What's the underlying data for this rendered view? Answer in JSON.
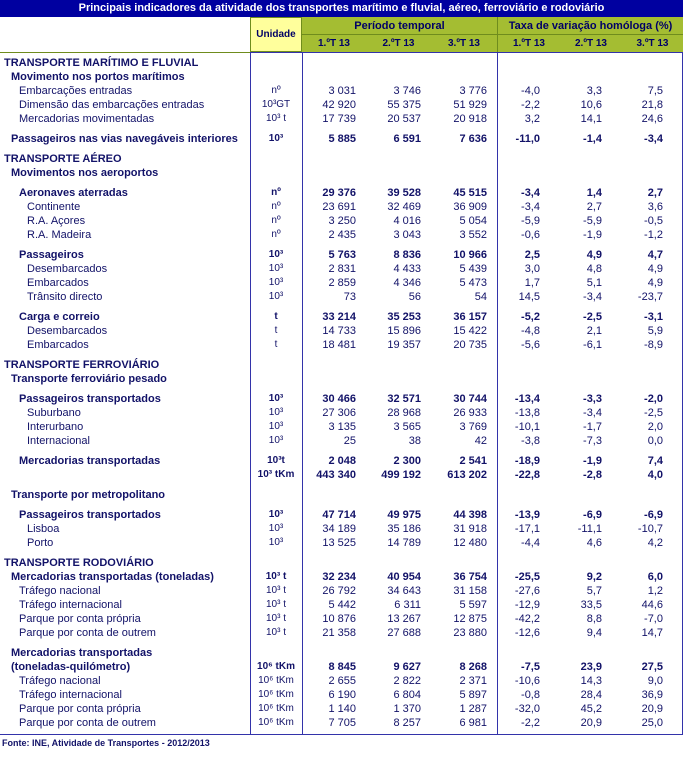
{
  "title": "Principais indicadores da atividade dos transportes marítimo e fluvial, aéreo, ferroviário e rodoviário",
  "header": {
    "unit_label": "Unidade",
    "period_group": "Período temporal",
    "rate_group": "Taxa de variação homóloga (%)",
    "period_cols": [
      "1.ºT 13",
      "2.ºT 13",
      "3.ºT 13"
    ],
    "rate_cols": [
      "1.ºT 13",
      "2.ºT 13",
      "3.ºT 13"
    ]
  },
  "colors": {
    "title_bar": "#0000a0",
    "header_green": "#a4bd32",
    "unit_yellow": "#ffff9c",
    "text_navy": "#121268",
    "line_blue": "#3333aa",
    "line_green": "#6f8c1d"
  },
  "rows": [
    {
      "label": "TRANSPORTE MARÍTIMO E FLUVIAL",
      "indent": 0,
      "bold": true
    },
    {
      "label": "Movimento nos portos marítimos",
      "indent": 1,
      "bold": true
    },
    {
      "label": "Embarcações entradas",
      "indent": 2,
      "bold": false,
      "unit": "nº",
      "v": [
        "3 031",
        "3 746",
        "3 776"
      ],
      "r": [
        "-4,0",
        "3,3",
        "7,5"
      ]
    },
    {
      "label": "Dimensão das embarcações entradas",
      "indent": 2,
      "bold": false,
      "unit": "10³GT",
      "v": [
        "42 920",
        "55 375",
        "51 929"
      ],
      "r": [
        "-2,2",
        "10,6",
        "21,8"
      ]
    },
    {
      "label": "Mercadorias movimentadas",
      "indent": 2,
      "bold": false,
      "unit": "10³ t",
      "v": [
        "17 739",
        "20 537",
        "20 918"
      ],
      "r": [
        "3,2",
        "14,1",
        "24,6"
      ]
    },
    {
      "label": "Passageiros nas vias navegáveis interiores",
      "indent": 1,
      "bold": true,
      "gap": true,
      "unit": "10³",
      "v": [
        "5 885",
        "6 591",
        "7 636"
      ],
      "r": [
        "-11,0",
        "-1,4",
        "-3,4"
      ]
    },
    {
      "label": "TRANSPORTE AÉREO",
      "indent": 0,
      "bold": true,
      "gap": true
    },
    {
      "label": "Movimentos nos aeroportos",
      "indent": 1,
      "bold": true
    },
    {
      "label": "Aeronaves aterradas",
      "indent": 2,
      "bold": true,
      "gap": true,
      "unit": "nº",
      "v": [
        "29 376",
        "39 528",
        "45 515"
      ],
      "r": [
        "-3,4",
        "1,4",
        "2,7"
      ]
    },
    {
      "label": "Continente",
      "indent": 3,
      "bold": false,
      "unit": "nº",
      "v": [
        "23 691",
        "32 469",
        "36 909"
      ],
      "r": [
        "-3,4",
        "2,7",
        "3,6"
      ]
    },
    {
      "label": "R.A. Açores",
      "indent": 3,
      "bold": false,
      "unit": "nº",
      "v": [
        "3 250",
        "4 016",
        "5 054"
      ],
      "r": [
        "-5,9",
        "-5,9",
        "-0,5"
      ]
    },
    {
      "label": "R.A. Madeira",
      "indent": 3,
      "bold": false,
      "unit": "nº",
      "v": [
        "2 435",
        "3 043",
        "3 552"
      ],
      "r": [
        "-0,6",
        "-1,9",
        "-1,2"
      ]
    },
    {
      "label": "Passageiros",
      "indent": 2,
      "bold": true,
      "gap": true,
      "unit": "10³",
      "v": [
        "5 763",
        "8 836",
        "10 966"
      ],
      "r": [
        "2,5",
        "4,9",
        "4,7"
      ]
    },
    {
      "label": "Desembarcados",
      "indent": 3,
      "bold": false,
      "unit": "10³",
      "v": [
        "2 831",
        "4 433",
        "5 439"
      ],
      "r": [
        "3,0",
        "4,8",
        "4,9"
      ]
    },
    {
      "label": "Embarcados",
      "indent": 3,
      "bold": false,
      "unit": "10³",
      "v": [
        "2 859",
        "4 346",
        "5 473"
      ],
      "r": [
        "1,7",
        "5,1",
        "4,9"
      ]
    },
    {
      "label": "Trânsito directo",
      "indent": 3,
      "bold": false,
      "unit": "10³",
      "v": [
        "73",
        "56",
        "54"
      ],
      "r": [
        "14,5",
        "-3,4",
        "-23,7"
      ]
    },
    {
      "label": "Carga e correio",
      "indent": 2,
      "bold": true,
      "gap": true,
      "unit": "t",
      "v": [
        "33 214",
        "35 253",
        "36 157"
      ],
      "r": [
        "-5,2",
        "-2,5",
        "-3,1"
      ]
    },
    {
      "label": "Desembarcados",
      "indent": 3,
      "bold": false,
      "unit": "t",
      "v": [
        "14 733",
        "15 896",
        "15 422"
      ],
      "r": [
        "-4,8",
        "2,1",
        "5,9"
      ]
    },
    {
      "label": "Embarcados",
      "indent": 3,
      "bold": false,
      "unit": "t",
      "v": [
        "18 481",
        "19 357",
        "20 735"
      ],
      "r": [
        "-5,6",
        "-6,1",
        "-8,9"
      ]
    },
    {
      "label": "TRANSPORTE FERROVIÁRIO",
      "indent": 0,
      "bold": true,
      "gap": true
    },
    {
      "label": "Transporte ferroviário pesado",
      "indent": 1,
      "bold": true
    },
    {
      "label": "Passageiros transportados",
      "indent": 2,
      "bold": true,
      "gap": true,
      "unit": "10³",
      "v": [
        "30 466",
        "32 571",
        "30 744"
      ],
      "r": [
        "-13,4",
        "-3,3",
        "-2,0"
      ]
    },
    {
      "label": "Suburbano",
      "indent": 3,
      "bold": false,
      "unit": "10³",
      "v": [
        "27 306",
        "28 968",
        "26 933"
      ],
      "r": [
        "-13,8",
        "-3,4",
        "-2,5"
      ]
    },
    {
      "label": "Interurbano",
      "indent": 3,
      "bold": false,
      "unit": "10³",
      "v": [
        "3 135",
        "3 565",
        "3 769"
      ],
      "r": [
        "-10,1",
        "-1,7",
        "2,0"
      ]
    },
    {
      "label": "Internacional",
      "indent": 3,
      "bold": false,
      "unit": "10³",
      "v": [
        "25",
        "38",
        "42"
      ],
      "r": [
        "-3,8",
        "-7,3",
        "0,0"
      ]
    },
    {
      "label": "Mercadorias transportadas",
      "indent": 2,
      "bold": true,
      "gap": true,
      "unit": "10³t",
      "v": [
        "2 048",
        "2 300",
        "2 541"
      ],
      "r": [
        "-18,9",
        "-1,9",
        "7,4"
      ]
    },
    {
      "label": "",
      "indent": 2,
      "bold": true,
      "unit": "10³ tKm",
      "v": [
        "443 340",
        "499 192",
        "613 202"
      ],
      "r": [
        "-22,8",
        "-2,8",
        "4,0"
      ]
    },
    {
      "label": "Transporte por metropolitano",
      "indent": 1,
      "bold": true,
      "gap": true
    },
    {
      "label": "Passageiros transportados",
      "indent": 2,
      "bold": true,
      "gap": true,
      "unit": "10³",
      "v": [
        "47 714",
        "49 975",
        "44 398"
      ],
      "r": [
        "-13,9",
        "-6,9",
        "-6,9"
      ]
    },
    {
      "label": "Lisboa",
      "indent": 3,
      "bold": false,
      "unit": "10³",
      "v": [
        "34 189",
        "35 186",
        "31 918"
      ],
      "r": [
        "-17,1",
        "-11,1",
        "-10,7"
      ]
    },
    {
      "label": "Porto",
      "indent": 3,
      "bold": false,
      "unit": "10³",
      "v": [
        "13 525",
        "14 789",
        "12 480"
      ],
      "r": [
        "-4,4",
        "4,6",
        "4,2"
      ]
    },
    {
      "label": "TRANSPORTE RODOVIÁRIO",
      "indent": 0,
      "bold": true,
      "gap": true
    },
    {
      "label": "Mercadorias transportadas (toneladas)",
      "indent": 1,
      "bold": true,
      "unit": "10³ t",
      "v": [
        "32 234",
        "40 954",
        "36 754"
      ],
      "r": [
        "-25,5",
        "9,2",
        "6,0"
      ]
    },
    {
      "label": "Tráfego nacional",
      "indent": 2,
      "bold": false,
      "unit": "10³ t",
      "v": [
        "26 792",
        "34 643",
        "31 158"
      ],
      "r": [
        "-27,6",
        "5,7",
        "1,2"
      ]
    },
    {
      "label": "Tráfego internacional",
      "indent": 2,
      "bold": false,
      "unit": "10³ t",
      "v": [
        "5 442",
        "6 311",
        "5 597"
      ],
      "r": [
        "-12,9",
        "33,5",
        "44,6"
      ]
    },
    {
      "label": "Parque por conta própria",
      "indent": 2,
      "bold": false,
      "unit": "10³ t",
      "v": [
        "10 876",
        "13 267",
        "12 875"
      ],
      "r": [
        "-42,2",
        "8,8",
        "-7,0"
      ]
    },
    {
      "label": "Parque por conta de outrem",
      "indent": 2,
      "bold": false,
      "unit": "10³ t",
      "v": [
        "21 358",
        "27 688",
        "23 880"
      ],
      "r": [
        "-12,6",
        "9,4",
        "14,7"
      ]
    },
    {
      "label": "Mercadorias transportadas",
      "indent": 1,
      "bold": true,
      "gap": true
    },
    {
      "label": "(toneladas-quilómetro)",
      "indent": 1,
      "bold": true,
      "unit": "10⁶ tKm",
      "v": [
        "8 845",
        "9 627",
        "8 268"
      ],
      "r": [
        "-7,5",
        "23,9",
        "27,5"
      ]
    },
    {
      "label": "Tráfego nacional",
      "indent": 2,
      "bold": false,
      "unit": "10⁶ tKm",
      "v": [
        "2 655",
        "2 822",
        "2 371"
      ],
      "r": [
        "-10,6",
        "14,3",
        "9,0"
      ]
    },
    {
      "label": "Tráfego internacional",
      "indent": 2,
      "bold": false,
      "unit": "10⁶ tKm",
      "v": [
        "6 190",
        "6 804",
        "5 897"
      ],
      "r": [
        "-0,8",
        "28,4",
        "36,9"
      ]
    },
    {
      "label": "Parque por conta própria",
      "indent": 2,
      "bold": false,
      "unit": "10⁶ tKm",
      "v": [
        "1 140",
        "1 370",
        "1 287"
      ],
      "r": [
        "-32,0",
        "45,2",
        "20,9"
      ]
    },
    {
      "label": "Parque por conta de outrem",
      "indent": 2,
      "bold": false,
      "unit": "10⁶ tKm",
      "v": [
        "7 705",
        "8 257",
        "6 981"
      ],
      "r": [
        "-2,2",
        "20,9",
        "25,0"
      ]
    }
  ],
  "footer": {
    "source": "Fonte: INE, Atividade de Transportes - 2012/2013"
  }
}
